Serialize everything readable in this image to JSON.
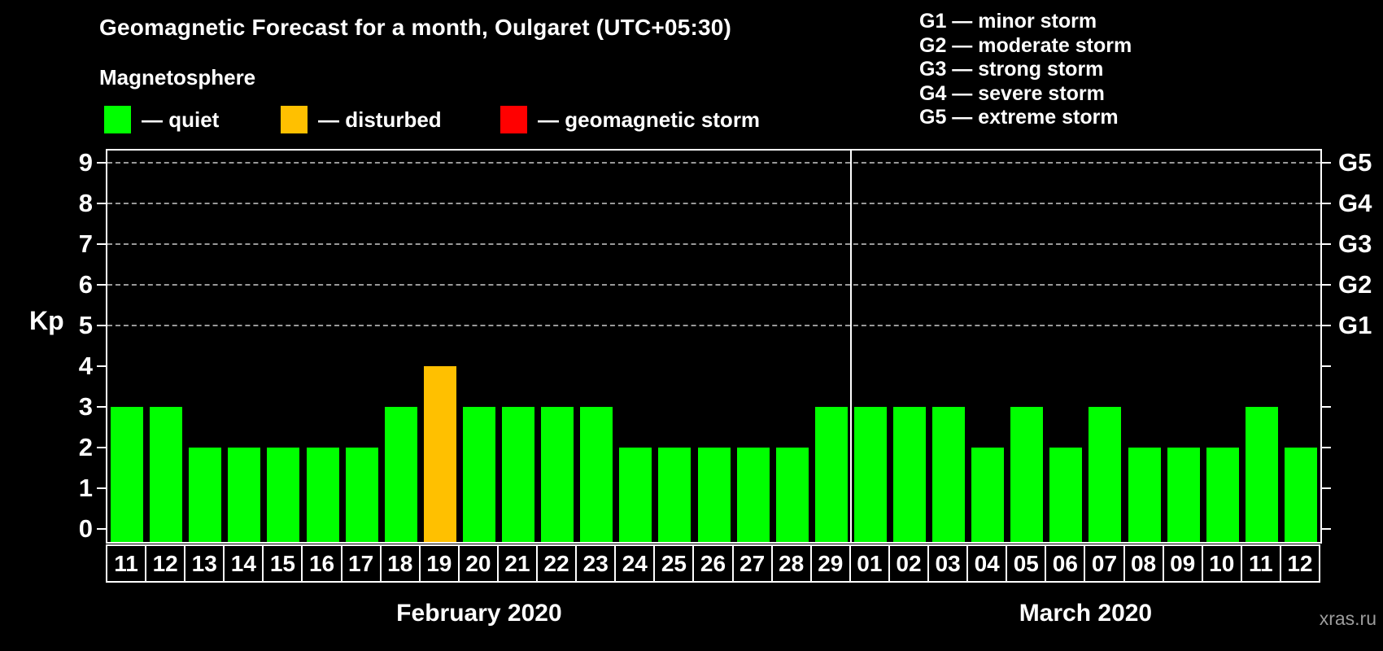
{
  "header": {
    "title": "Geomagnetic Forecast for a month, Oulgaret (UTC+05:30)",
    "subtitle": "Magnetosphere"
  },
  "legend": {
    "items": [
      {
        "name": "quiet",
        "swatch_color": "#00ff00",
        "text": "— quiet"
      },
      {
        "name": "disturbed",
        "swatch_color": "#ffc000",
        "text": "— disturbed"
      },
      {
        "name": "storm",
        "swatch_color": "#ff0000",
        "text": "— geomagnetic storm"
      }
    ]
  },
  "storm_scale_legend": {
    "lines": [
      "G1 — minor storm",
      "G2 — moderate storm",
      "G3 — strong storm",
      "G4 — severe storm",
      "G5 — extreme storm"
    ]
  },
  "watermark": "xras.ru",
  "chart_data": {
    "type": "bar",
    "title": "Geomagnetic Forecast for a month, Oulgaret (UTC+05:30)",
    "ylabel": "Kp",
    "ylim": [
      0,
      9
    ],
    "yticks": [
      0,
      1,
      2,
      3,
      4,
      5,
      6,
      7,
      8,
      9
    ],
    "gridlines_at": [
      5,
      6,
      7,
      8,
      9
    ],
    "grid": "dashed horizontal lines at storm levels only",
    "legend_position": "top",
    "right_axis_labels": [
      {
        "level": 5,
        "text": "G1"
      },
      {
        "level": 6,
        "text": "G2"
      },
      {
        "level": 7,
        "text": "G3"
      },
      {
        "level": 8,
        "text": "G4"
      },
      {
        "level": 9,
        "text": "G5"
      }
    ],
    "bar_colors": {
      "quiet": "#00ff00",
      "disturbed": "#ffc000",
      "storm": "#ff0000"
    },
    "groups": [
      {
        "label": "February 2020",
        "categories": [
          "11",
          "12",
          "13",
          "14",
          "15",
          "16",
          "17",
          "18",
          "19",
          "20",
          "21",
          "22",
          "23",
          "24",
          "25",
          "26",
          "27",
          "28",
          "29"
        ],
        "values": [
          3,
          3,
          2,
          2,
          2,
          2,
          2,
          3,
          4,
          3,
          3,
          3,
          3,
          2,
          2,
          2,
          2,
          2,
          3
        ],
        "statuses": [
          "quiet",
          "quiet",
          "quiet",
          "quiet",
          "quiet",
          "quiet",
          "quiet",
          "quiet",
          "disturbed",
          "quiet",
          "quiet",
          "quiet",
          "quiet",
          "quiet",
          "quiet",
          "quiet",
          "quiet",
          "quiet",
          "quiet"
        ]
      },
      {
        "label": "March 2020",
        "categories": [
          "01",
          "02",
          "03",
          "04",
          "05",
          "06",
          "07",
          "08",
          "09",
          "10",
          "11",
          "12"
        ],
        "values": [
          3,
          3,
          3,
          2,
          3,
          2,
          3,
          2,
          2,
          2,
          3,
          2
        ],
        "statuses": [
          "quiet",
          "quiet",
          "quiet",
          "quiet",
          "quiet",
          "quiet",
          "quiet",
          "quiet",
          "quiet",
          "quiet",
          "quiet",
          "quiet"
        ]
      }
    ]
  }
}
